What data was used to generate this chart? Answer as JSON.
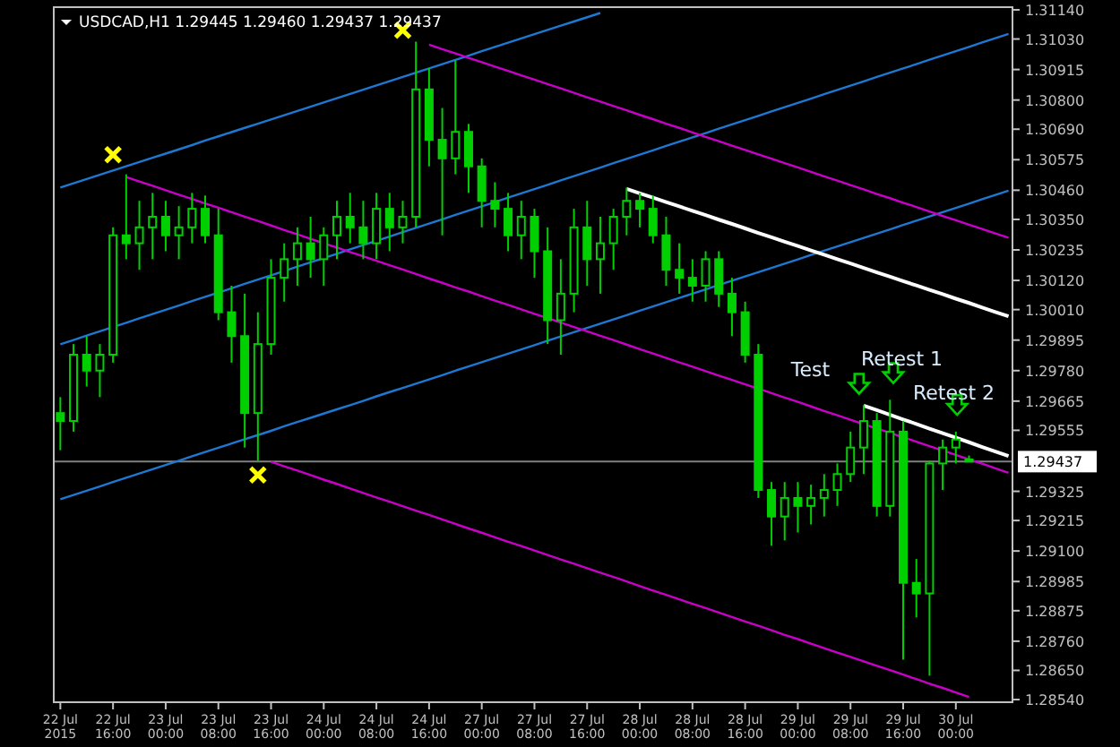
{
  "chart_data": {
    "type": "candlestick",
    "title": "USDCAD,H1  1.29445 1.29460 1.29437 1.29437",
    "categories": [
      "22 Jul 2015",
      null,
      null,
      null,
      "22 Jul 16:00",
      null,
      null,
      null,
      "23 Jul 00:00",
      null,
      null,
      null,
      "23 Jul 08:00",
      null,
      null,
      null,
      "23 Jul 16:00",
      null,
      null,
      null,
      "24 Jul 00:00",
      null,
      null,
      null,
      "24 Jul 08:00",
      null,
      null,
      null,
      "24 Jul 16:00",
      null,
      null,
      null,
      "27 Jul 00:00",
      null,
      null,
      null,
      "27 Jul 08:00",
      null,
      null,
      null,
      "27 Jul 16:00",
      null,
      null,
      null,
      "28 Jul 00:00",
      null,
      null,
      null,
      "28 Jul 08:00",
      null,
      null,
      null,
      "28 Jul 16:00",
      null,
      null,
      null,
      "29 Jul 00:00",
      null,
      null,
      null,
      "29 Jul 08:00",
      null,
      null,
      null,
      "29 Jul 16:00",
      null,
      null,
      null,
      "30 Jul 00:00",
      null,
      null,
      null,
      null
    ],
    "ylim": [
      1.2853,
      1.3115
    ],
    "yticks": [
      {
        "value": 1.3114,
        "label": "1.31140"
      },
      {
        "value": 1.3103,
        "label": "1.31030"
      },
      1.30915,
      {
        "value": 1.308,
        "label": "1.30800"
      },
      {
        "value": 1.3069,
        "label": "1.30690"
      },
      1.30575,
      {
        "value": 1.3046,
        "label": "1.30460"
      },
      {
        "value": 1.3035,
        "label": "1.30350"
      },
      1.30235,
      {
        "value": 1.3012,
        "label": "1.30120"
      },
      {
        "value": 1.3001,
        "label": "1.30010"
      },
      1.29895,
      {
        "value": 1.2978,
        "label": "1.29780"
      },
      1.29665,
      1.29555,
      1.29325,
      1.29215,
      {
        "value": 1.291,
        "label": "1.29100"
      },
      1.28985,
      1.28875,
      {
        "value": 1.2876,
        "label": "1.28760"
      },
      {
        "value": 1.2865,
        "label": "1.28650"
      },
      {
        "value": 1.2854,
        "label": "1.28540"
      }
    ],
    "ref_lines": [
      {
        "axis": "y",
        "value": 1.29437,
        "label": "1.29437",
        "color": "#808080"
      }
    ],
    "annotations": [
      "Test",
      "Retest 1",
      "Retest 2"
    ],
    "grid": false,
    "series": [
      {
        "color": "#00d000",
        "ohlc": [
          [
            1.2962,
            1.2968,
            1.2948,
            1.2959
          ],
          [
            1.2959,
            1.2988,
            1.2955,
            1.2984
          ],
          [
            1.2984,
            1.2991,
            1.2972,
            1.2978
          ],
          [
            1.2978,
            1.2988,
            1.2968,
            1.2984
          ],
          [
            1.2984,
            1.3032,
            1.2981,
            1.3029
          ],
          [
            1.3029,
            1.3052,
            1.302,
            1.3026
          ],
          [
            1.3026,
            1.3042,
            1.3016,
            1.3032
          ],
          [
            1.3032,
            1.3045,
            1.302,
            1.3036
          ],
          [
            1.3036,
            1.3042,
            1.3023,
            1.3029
          ],
          [
            1.3029,
            1.304,
            1.302,
            1.3032
          ],
          [
            1.3032,
            1.3045,
            1.3026,
            1.3039
          ],
          [
            1.3039,
            1.3044,
            1.3026,
            1.3029
          ],
          [
            1.3029,
            1.3039,
            1.2997,
            1.3
          ],
          [
            1.3,
            1.301,
            1.2981,
            1.2991
          ],
          [
            1.2991,
            1.3007,
            1.2949,
            1.2962
          ],
          [
            1.2962,
            1.3,
            1.2944,
            1.2988
          ],
          [
            1.2988,
            1.302,
            1.2984,
            1.3013
          ],
          [
            1.3013,
            1.3026,
            1.3004,
            1.302
          ],
          [
            1.302,
            1.3032,
            1.301,
            1.3026
          ],
          [
            1.3026,
            1.3036,
            1.3013,
            1.302
          ],
          [
            1.302,
            1.3032,
            1.301,
            1.3029
          ],
          [
            1.3029,
            1.3042,
            1.302,
            1.3036
          ],
          [
            1.3036,
            1.3045,
            1.3026,
            1.3032
          ],
          [
            1.3032,
            1.3042,
            1.302,
            1.3026
          ],
          [
            1.3026,
            1.3045,
            1.302,
            1.3039
          ],
          [
            1.3039,
            1.3045,
            1.3023,
            1.3032
          ],
          [
            1.3032,
            1.3042,
            1.3026,
            1.3036
          ],
          [
            1.3036,
            1.3102,
            1.3032,
            1.3084
          ],
          [
            1.3084,
            1.3092,
            1.3055,
            1.3065
          ],
          [
            1.3065,
            1.3077,
            1.3029,
            1.3058
          ],
          [
            1.3058,
            1.3095,
            1.3052,
            1.3068
          ],
          [
            1.3068,
            1.3071,
            1.3045,
            1.3055
          ],
          [
            1.3055,
            1.3058,
            1.3032,
            1.3042
          ],
          [
            1.3042,
            1.3049,
            1.3032,
            1.3039
          ],
          [
            1.3039,
            1.3045,
            1.3023,
            1.3029
          ],
          [
            1.3029,
            1.3042,
            1.302,
            1.3036
          ],
          [
            1.3036,
            1.3039,
            1.3013,
            1.3023
          ],
          [
            1.3023,
            1.3032,
            1.2988,
            1.2997
          ],
          [
            1.2997,
            1.302,
            1.2984,
            1.3007
          ],
          [
            1.3007,
            1.3039,
            1.3,
            1.3032
          ],
          [
            1.3032,
            1.3042,
            1.301,
            1.302
          ],
          [
            1.302,
            1.3036,
            1.3007,
            1.3026
          ],
          [
            1.3026,
            1.3039,
            1.3016,
            1.3036
          ],
          [
            1.3036,
            1.3047,
            1.3029,
            1.3042
          ],
          [
            1.3042,
            1.3045,
            1.3032,
            1.3039
          ],
          [
            1.3039,
            1.3044,
            1.3026,
            1.3029
          ],
          [
            1.3029,
            1.3036,
            1.301,
            1.3016
          ],
          [
            1.3016,
            1.3026,
            1.3007,
            1.3013
          ],
          [
            1.3013,
            1.302,
            1.3004,
            1.301
          ],
          [
            1.301,
            1.3023,
            1.3004,
            1.302
          ],
          [
            1.302,
            1.3023,
            1.3002,
            1.3007
          ],
          [
            1.3007,
            1.3013,
            1.2991,
            1.3
          ],
          [
            1.3,
            1.3004,
            1.2981,
            1.2984
          ],
          [
            1.2984,
            1.2988,
            1.293,
            1.2933
          ],
          [
            1.2933,
            1.2936,
            1.2912,
            1.2923
          ],
          [
            1.2923,
            1.2936,
            1.2914,
            1.293
          ],
          [
            1.293,
            1.2936,
            1.2917,
            1.2927
          ],
          [
            1.2927,
            1.2935,
            1.292,
            1.293
          ],
          [
            1.293,
            1.2939,
            1.2923,
            1.2933
          ],
          [
            1.2933,
            1.2943,
            1.2927,
            1.2939
          ],
          [
            1.2939,
            1.2955,
            1.2936,
            1.2949
          ],
          [
            1.2949,
            1.2965,
            1.2939,
            1.2959
          ],
          [
            1.2959,
            1.2962,
            1.2923,
            1.2927
          ],
          [
            1.2927,
            1.2967,
            1.2923,
            1.2955
          ],
          [
            1.2955,
            1.2959,
            1.2869,
            1.2898
          ],
          [
            1.2898,
            1.2907,
            1.2885,
            1.2894
          ],
          [
            1.2894,
            1.2944,
            1.2863,
            1.2943
          ],
          [
            1.2943,
            1.2952,
            1.2933,
            1.2949
          ],
          [
            1.2949,
            1.2955,
            1.2943,
            1.2952
          ],
          [
            1.29445,
            1.2946,
            1.29437,
            1.29437
          ],
          null,
          null,
          null
        ]
      },
      {
        "type": "line",
        "color": "#1e78d2",
        "values": [
          1.3047,
          1.30486,
          1.30502,
          1.30518,
          1.30534,
          1.3055,
          1.30566,
          1.30582,
          1.30598,
          1.30614,
          1.3063,
          1.30647,
          1.30663,
          1.30679,
          1.30695,
          1.30711,
          1.30727,
          1.30743,
          1.30759,
          1.30775,
          1.30791,
          1.30807,
          1.30823,
          1.30839,
          1.30855,
          1.30871,
          1.30887,
          1.30903,
          1.30919,
          1.30935,
          1.30951,
          1.30967,
          1.30984,
          1.31,
          1.31016,
          1.31032,
          1.31048,
          1.31064,
          1.3108,
          1.31096,
          1.31112,
          1.31128,
          null,
          null,
          null,
          null,
          null,
          null,
          null,
          null,
          null,
          null,
          null,
          null,
          null,
          null,
          null,
          null,
          null,
          null,
          null,
          null,
          null,
          null,
          null,
          null,
          null,
          null,
          null,
          null,
          null,
          null,
          null
        ]
      },
      {
        "type": "line",
        "color": "#1e78d2",
        "values": [
          1.29879,
          1.29895,
          1.29912,
          1.29928,
          1.29944,
          1.2996,
          1.29977,
          1.29993,
          1.30009,
          1.30025,
          1.30042,
          1.30058,
          1.30074,
          1.3009,
          1.30107,
          1.30123,
          1.30139,
          1.30155,
          1.30172,
          1.30188,
          1.30204,
          1.3022,
          1.30237,
          1.30253,
          1.30269,
          1.30285,
          1.30302,
          1.30318,
          1.30334,
          1.3035,
          1.30367,
          1.30383,
          1.30399,
          1.30415,
          1.30432,
          1.30448,
          1.30464,
          1.3048,
          1.30497,
          1.30513,
          1.30529,
          1.30545,
          1.30562,
          1.30578,
          1.30594,
          1.3061,
          1.30627,
          1.30643,
          1.30659,
          1.30675,
          1.30692,
          1.30708,
          1.30724,
          1.3074,
          1.30757,
          1.30773,
          1.30789,
          1.30805,
          1.30822,
          1.30838,
          1.30854,
          1.3087,
          1.30887,
          1.30903,
          1.30919,
          1.30935,
          1.30952,
          1.30968,
          1.30984,
          1.31,
          1.31017,
          1.31033,
          1.31049
        ]
      },
      {
        "type": "line",
        "color": "#1e78d2",
        "values": [
          1.29295,
          1.29311,
          1.29327,
          1.29343,
          1.2936,
          1.29376,
          1.29392,
          1.29408,
          1.29424,
          1.2944,
          1.29457,
          1.29473,
          1.29489,
          1.29505,
          1.29521,
          1.29537,
          1.29553,
          1.2957,
          1.29586,
          1.29602,
          1.29618,
          1.29634,
          1.2965,
          1.29666,
          1.29683,
          1.29699,
          1.29715,
          1.29731,
          1.29747,
          1.29763,
          1.2978,
          1.29796,
          1.29812,
          1.29828,
          1.29844,
          1.2986,
          1.29876,
          1.29893,
          1.29909,
          1.29925,
          1.29941,
          1.29957,
          1.29973,
          1.29989,
          1.30006,
          1.30022,
          1.30038,
          1.30054,
          1.3007,
          1.30086,
          1.30103,
          1.30119,
          1.30135,
          1.30151,
          1.30167,
          1.30183,
          1.30199,
          1.30216,
          1.30232,
          1.30248,
          1.30264,
          1.3028,
          1.30296,
          1.30312,
          1.30329,
          1.30345,
          1.30361,
          1.30377,
          1.30393,
          1.30409,
          1.30426,
          1.30442,
          1.30458
        ]
      },
      {
        "type": "line",
        "color": "#c800c8",
        "values": [
          null,
          null,
          null,
          null,
          null,
          null,
          null,
          null,
          null,
          null,
          null,
          null,
          null,
          null,
          null,
          null,
          null,
          null,
          null,
          null,
          null,
          null,
          null,
          null,
          null,
          null,
          null,
          null,
          1.31009,
          1.30992,
          1.30976,
          1.30959,
          1.30943,
          1.30926,
          1.3091,
          1.30893,
          1.30877,
          1.3086,
          1.30844,
          1.30827,
          1.3081,
          1.30794,
          1.30777,
          1.30761,
          1.30744,
          1.30728,
          1.30711,
          1.30695,
          1.30678,
          1.30661,
          1.30645,
          1.30628,
          1.30612,
          1.30595,
          1.30579,
          1.30562,
          1.30546,
          1.30529,
          1.30512,
          1.30496,
          1.30479,
          1.30463,
          1.30446,
          1.3043,
          1.30413,
          1.30397,
          1.3038,
          1.30363,
          1.30347,
          1.3033,
          1.30314,
          1.30297,
          1.30281
        ]
      },
      {
        "type": "line",
        "color": "#c800c8",
        "values": [
          null,
          null,
          null,
          null,
          null,
          1.3051,
          1.30493,
          1.30477,
          1.3046,
          1.30443,
          1.30427,
          1.3041,
          1.30394,
          1.30377,
          1.3036,
          1.30344,
          1.30327,
          1.3031,
          1.30294,
          1.30277,
          1.3026,
          1.30244,
          1.30227,
          1.30211,
          1.30194,
          1.30177,
          1.30161,
          1.30144,
          1.30127,
          1.30111,
          1.30094,
          1.30078,
          1.30061,
          1.30044,
          1.30028,
          1.30011,
          1.29994,
          1.29978,
          1.29961,
          1.29944,
          1.29928,
          1.29911,
          1.29895,
          1.29878,
          1.29861,
          1.29845,
          1.29828,
          1.29811,
          1.29795,
          1.29778,
          1.29761,
          1.29745,
          1.29728,
          1.29712,
          1.29695,
          1.29678,
          1.29662,
          1.29645,
          1.29628,
          1.29612,
          1.29595,
          1.29578,
          1.29562,
          1.29545,
          1.29529,
          1.29512,
          1.29495,
          1.29479,
          1.29462,
          1.29445,
          1.29429,
          1.29412,
          1.29395
        ]
      },
      {
        "type": "line",
        "color": "#c800c8",
        "values": [
          null,
          null,
          null,
          null,
          null,
          null,
          null,
          null,
          null,
          null,
          null,
          null,
          null,
          null,
          null,
          null,
          1.29436,
          1.29419,
          1.29403,
          1.29386,
          1.29369,
          1.29353,
          1.29336,
          1.29319,
          1.29302,
          1.29286,
          1.29269,
          1.29252,
          1.29236,
          1.29219,
          1.29202,
          1.29185,
          1.29169,
          1.29152,
          1.29135,
          1.29119,
          1.29102,
          1.29085,
          1.29068,
          1.29052,
          1.29035,
          1.29018,
          1.29002,
          1.28985,
          1.28968,
          1.28951,
          1.28935,
          1.28918,
          1.28901,
          1.28885,
          1.28868,
          1.28851,
          1.28834,
          1.28818,
          1.28801,
          1.28784,
          1.28768,
          1.28751,
          1.28734,
          1.28717,
          1.28701,
          1.28684,
          1.28667,
          1.28651,
          1.28634,
          1.28617,
          1.286,
          1.28584,
          1.28567,
          1.2855,
          null,
          null,
          null
        ]
      },
      {
        "type": "line",
        "color": "#ffffff",
        "values": [
          null,
          null,
          null,
          null,
          null,
          null,
          null,
          null,
          null,
          null,
          null,
          null,
          null,
          null,
          null,
          null,
          null,
          null,
          null,
          null,
          null,
          null,
          null,
          null,
          null,
          null,
          null,
          null,
          null,
          null,
          null,
          null,
          null,
          null,
          null,
          null,
          null,
          null,
          null,
          null,
          null,
          null,
          null,
          1.30465,
          1.30448,
          1.30432,
          1.30415,
          1.30399,
          1.30382,
          1.30366,
          1.30349,
          1.30333,
          1.30316,
          1.30299,
          1.30283,
          1.30266,
          1.3025,
          1.30233,
          1.30217,
          1.302,
          1.30184,
          1.30167,
          1.3015,
          1.30134,
          1.30117,
          1.30101,
          1.30084,
          1.30068,
          1.30051,
          1.30035,
          1.30018,
          1.30001,
          1.29985
        ]
      },
      {
        "type": "line",
        "color": "#ffffff",
        "values": [
          null,
          null,
          null,
          null,
          null,
          null,
          null,
          null,
          null,
          null,
          null,
          null,
          null,
          null,
          null,
          null,
          null,
          null,
          null,
          null,
          null,
          null,
          null,
          null,
          null,
          null,
          null,
          null,
          null,
          null,
          null,
          null,
          null,
          null,
          null,
          null,
          null,
          null,
          null,
          null,
          null,
          null,
          null,
          null,
          null,
          null,
          null,
          null,
          null,
          null,
          null,
          null,
          null,
          null,
          null,
          null,
          null,
          null,
          null,
          null,
          null,
          1.29648,
          1.29631,
          1.29613,
          1.29596,
          1.29579,
          1.29561,
          1.29544,
          1.29527,
          1.2951,
          1.29492,
          1.29475,
          1.29458
        ]
      },
      {
        "type": "scatter",
        "color": "#ffff00",
        "marker": "cross",
        "values": [
          null,
          null,
          null,
          null,
          1.30594,
          null,
          null,
          null,
          null,
          null,
          null,
          null,
          null,
          null,
          null,
          1.29387,
          null,
          null,
          null,
          null,
          null,
          null,
          null,
          null,
          null,
          null,
          1.31063,
          null,
          null,
          null,
          null,
          null,
          null,
          null,
          null,
          null,
          null,
          null,
          null,
          null,
          null,
          null,
          null,
          null,
          null,
          null,
          null,
          null,
          null,
          null,
          null,
          null,
          null,
          null,
          null,
          null,
          null,
          null,
          null,
          null,
          null,
          null,
          null,
          null,
          null,
          null,
          null,
          null,
          null,
          null,
          null,
          null,
          null
        ]
      }
    ]
  }
}
